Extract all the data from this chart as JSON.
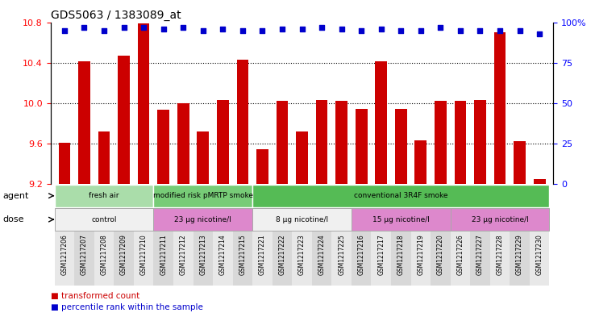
{
  "title": "GDS5063 / 1383089_at",
  "samples": [
    "GSM1217206",
    "GSM1217207",
    "GSM1217208",
    "GSM1217209",
    "GSM1217210",
    "GSM1217211",
    "GSM1217212",
    "GSM1217213",
    "GSM1217214",
    "GSM1217215",
    "GSM1217221",
    "GSM1217222",
    "GSM1217223",
    "GSM1217224",
    "GSM1217225",
    "GSM1217216",
    "GSM1217217",
    "GSM1217218",
    "GSM1217219",
    "GSM1217220",
    "GSM1217226",
    "GSM1217227",
    "GSM1217228",
    "GSM1217229",
    "GSM1217230"
  ],
  "bar_values": [
    9.61,
    10.41,
    9.72,
    10.47,
    10.79,
    9.93,
    10.0,
    9.72,
    10.03,
    10.43,
    9.54,
    10.02,
    9.72,
    10.03,
    10.02,
    9.94,
    10.41,
    9.94,
    9.63,
    10.02,
    10.02,
    10.03,
    10.7,
    9.62,
    9.25
  ],
  "percentile_values": [
    95,
    97,
    95,
    97,
    97,
    96,
    97,
    95,
    96,
    95,
    95,
    96,
    96,
    97,
    96,
    95,
    96,
    95,
    95,
    97,
    95,
    95,
    95,
    95,
    93
  ],
  "ylim_left": [
    9.2,
    10.8
  ],
  "ylim_right": [
    0,
    100
  ],
  "yticks_left": [
    9.2,
    9.6,
    10.0,
    10.4,
    10.8
  ],
  "yticks_right": [
    0,
    25,
    50,
    75,
    100
  ],
  "bar_color": "#cc0000",
  "dot_color": "#0000cc",
  "agent_groups": [
    {
      "label": "fresh air",
      "start": 0,
      "end": 5,
      "color": "#aaddaa"
    },
    {
      "label": "modified risk pMRTP smoke",
      "start": 5,
      "end": 10,
      "color": "#77cc77"
    },
    {
      "label": "conventional 3R4F smoke",
      "start": 10,
      "end": 25,
      "color": "#55bb55"
    }
  ],
  "dose_groups": [
    {
      "label": "control",
      "start": 0,
      "end": 5,
      "color": "#f0f0f0"
    },
    {
      "label": "23 μg nicotine/l",
      "start": 5,
      "end": 10,
      "color": "#dd88cc"
    },
    {
      "label": "8 μg nicotine/l",
      "start": 10,
      "end": 15,
      "color": "#f0f0f0"
    },
    {
      "label": "15 μg nicotine/l",
      "start": 15,
      "end": 20,
      "color": "#dd88cc"
    },
    {
      "label": "23 μg nicotine/l",
      "start": 20,
      "end": 25,
      "color": "#dd88cc"
    }
  ],
  "legend_items": [
    {
      "label": "transformed count",
      "color": "#cc0000"
    },
    {
      "label": "percentile rank within the sample",
      "color": "#0000cc"
    }
  ]
}
